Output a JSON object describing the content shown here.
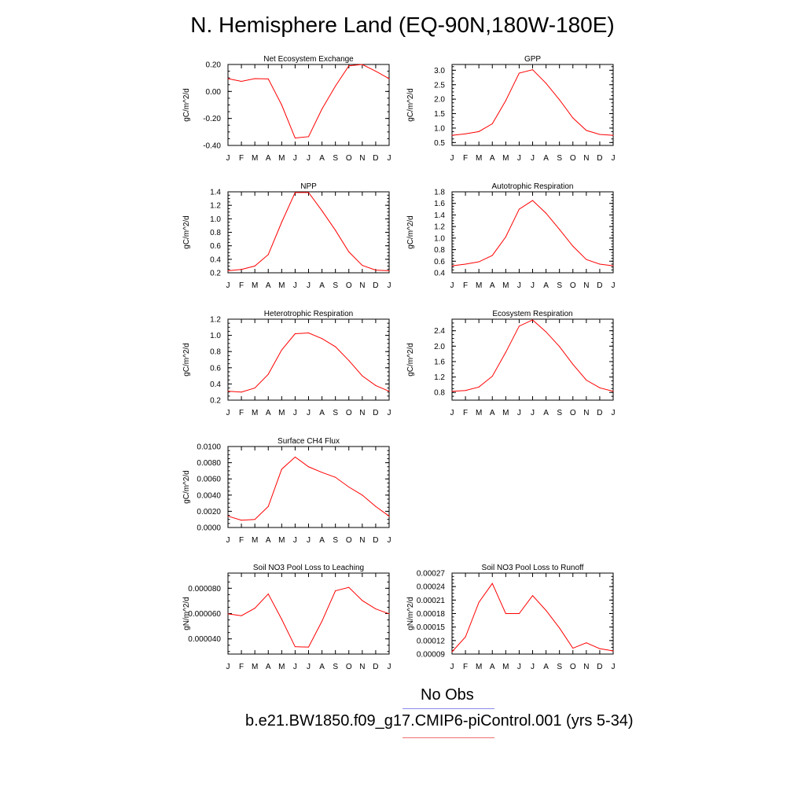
{
  "title": "N. Hemisphere Land (EQ-90N,180W-180E)",
  "legend": {
    "obs_label": "No Obs",
    "obs_color": "#8a8af0",
    "run_label": "b.e21.BW1850.f09_g17.CMIP6-piControl.001 (yrs 5-34)",
    "run_color": "#f07070"
  },
  "chart_data": [
    {
      "id": "nee",
      "type": "line",
      "title": "Net Ecosystem Exchange",
      "ylabel": "gC/m^2/d",
      "x": [
        "J",
        "F",
        "M",
        "A",
        "M",
        "J",
        "J",
        "A",
        "S",
        "O",
        "N",
        "D",
        "J"
      ],
      "ylim": [
        -0.4,
        0.2
      ],
      "yticks": [
        -0.4,
        -0.2,
        0.0,
        0.2
      ],
      "ytick_labels": [
        "-0.40",
        "-0.20",
        "0.00",
        "0.20"
      ],
      "series": [
        {
          "color": "#ff0000",
          "values": [
            0.095,
            0.075,
            0.095,
            0.093,
            -0.1,
            -0.345,
            -0.335,
            -0.13,
            0.04,
            0.19,
            0.2,
            0.15,
            0.095
          ]
        }
      ]
    },
    {
      "id": "gpp",
      "type": "line",
      "title": "GPP",
      "ylabel": "gC/m^2/d",
      "x": [
        "J",
        "F",
        "M",
        "A",
        "M",
        "J",
        "J",
        "A",
        "S",
        "O",
        "N",
        "D",
        "J"
      ],
      "ylim": [
        0.4,
        3.2
      ],
      "yticks": [
        0.5,
        1.0,
        1.5,
        2.0,
        2.5,
        3.0
      ],
      "ytick_labels": [
        "0.5",
        "1.0",
        "1.5",
        "2.0",
        "2.5",
        "3.0"
      ],
      "series": [
        {
          "color": "#ff0000",
          "values": [
            0.75,
            0.8,
            0.88,
            1.15,
            1.95,
            2.9,
            3.02,
            2.55,
            1.98,
            1.35,
            0.92,
            0.78,
            0.75
          ]
        }
      ]
    },
    {
      "id": "npp",
      "type": "line",
      "title": "NPP",
      "ylabel": "gC/m^2/d",
      "x": [
        "J",
        "F",
        "M",
        "A",
        "M",
        "J",
        "J",
        "A",
        "S",
        "O",
        "N",
        "D",
        "J"
      ],
      "ylim": [
        0.2,
        1.4
      ],
      "yticks": [
        0.2,
        0.4,
        0.6,
        0.8,
        1.0,
        1.2,
        1.4
      ],
      "ytick_labels": [
        "0.2",
        "0.4",
        "0.6",
        "0.8",
        "1.0",
        "1.2",
        "1.4"
      ],
      "series": [
        {
          "color": "#ff0000",
          "values": [
            0.23,
            0.25,
            0.3,
            0.47,
            0.95,
            1.39,
            1.39,
            1.12,
            0.83,
            0.51,
            0.31,
            0.24,
            0.23
          ]
        }
      ]
    },
    {
      "id": "ar",
      "type": "line",
      "title": "Autotrophic Respiration",
      "ylabel": "gC/m^2/d",
      "x": [
        "J",
        "F",
        "M",
        "A",
        "M",
        "J",
        "J",
        "A",
        "S",
        "O",
        "N",
        "D",
        "J"
      ],
      "ylim": [
        0.4,
        1.8
      ],
      "yticks": [
        0.4,
        0.6,
        0.8,
        1.0,
        1.2,
        1.4,
        1.6,
        1.8
      ],
      "ytick_labels": [
        "0.4",
        "0.6",
        "0.8",
        "1.0",
        "1.2",
        "1.4",
        "1.6",
        "1.8"
      ],
      "series": [
        {
          "color": "#ff0000",
          "values": [
            0.52,
            0.55,
            0.59,
            0.7,
            1.02,
            1.5,
            1.65,
            1.43,
            1.15,
            0.86,
            0.63,
            0.55,
            0.52
          ]
        }
      ]
    },
    {
      "id": "hr",
      "type": "line",
      "title": "Heterotrophic Respiration",
      "ylabel": "gC/m^2/d",
      "x": [
        "J",
        "F",
        "M",
        "A",
        "M",
        "J",
        "J",
        "A",
        "S",
        "O",
        "N",
        "D",
        "J"
      ],
      "ylim": [
        0.2,
        1.2
      ],
      "yticks": [
        0.2,
        0.4,
        0.6,
        0.8,
        1.0,
        1.2
      ],
      "ytick_labels": [
        "0.2",
        "0.4",
        "0.6",
        "0.8",
        "1.0",
        "1.2"
      ],
      "series": [
        {
          "color": "#ff0000",
          "values": [
            0.31,
            0.3,
            0.35,
            0.52,
            0.82,
            1.02,
            1.03,
            0.96,
            0.86,
            0.69,
            0.5,
            0.38,
            0.31
          ]
        }
      ]
    },
    {
      "id": "er",
      "type": "line",
      "title": "Ecosystem Respiration",
      "ylabel": "gC/m^2/d",
      "x": [
        "J",
        "F",
        "M",
        "A",
        "M",
        "J",
        "J",
        "A",
        "S",
        "O",
        "N",
        "D",
        "J"
      ],
      "ylim": [
        0.6,
        2.7
      ],
      "yticks": [
        0.8,
        1.2,
        1.6,
        2.0,
        2.4
      ],
      "ytick_labels": [
        "0.8",
        "1.2",
        "1.6",
        "2.0",
        "2.4"
      ],
      "series": [
        {
          "color": "#ff0000",
          "values": [
            0.83,
            0.85,
            0.94,
            1.22,
            1.84,
            2.52,
            2.68,
            2.37,
            1.99,
            1.53,
            1.12,
            0.92,
            0.83
          ]
        }
      ]
    },
    {
      "id": "ch4",
      "type": "line",
      "title": "Surface CH4 Flux",
      "ylabel": "gC/m^2/d",
      "x": [
        "J",
        "F",
        "M",
        "A",
        "M",
        "J",
        "J",
        "A",
        "S",
        "O",
        "N",
        "D",
        "J"
      ],
      "ylim": [
        0,
        0.01
      ],
      "yticks": [
        0,
        0.002,
        0.004,
        0.006,
        0.008,
        0.01
      ],
      "ytick_labels": [
        "0.0000",
        "0.0020",
        "0.0040",
        "0.0060",
        "0.0080",
        "0.0100"
      ],
      "series": [
        {
          "color": "#ff0000",
          "values": [
            0.0014,
            0.0009,
            0.001,
            0.0026,
            0.0072,
            0.0087,
            0.0075,
            0.0068,
            0.0062,
            0.005,
            0.004,
            0.0026,
            0.0014
          ]
        }
      ]
    },
    {
      "id": "leach",
      "type": "line",
      "title": "Soil NO3 Pool Loss to Leaching",
      "ylabel": "gN/m^2/d",
      "x": [
        "J",
        "F",
        "M",
        "A",
        "M",
        "J",
        "J",
        "A",
        "S",
        "O",
        "N",
        "D",
        "J"
      ],
      "ylim": [
        2.8e-05,
        9.2e-05
      ],
      "yticks": [
        4e-05,
        6e-05,
        8e-05
      ],
      "ytick_labels": [
        "0.000040",
        "0.000060",
        "0.000080"
      ],
      "series": [
        {
          "color": "#ff0000",
          "values": [
            5.98e-05,
            5.83e-05,
            6.42e-05,
            7.55e-05,
            5.55e-05,
            3.38e-05,
            3.35e-05,
            5.4e-05,
            7.8e-05,
            8.07e-05,
            7.03e-05,
            6.37e-05,
            5.98e-05
          ]
        }
      ]
    },
    {
      "id": "runoff",
      "type": "line",
      "title": "Soil NO3 Pool Loss to Runoff",
      "ylabel": "gN/m^2/d",
      "x": [
        "J",
        "F",
        "M",
        "A",
        "M",
        "J",
        "J",
        "A",
        "S",
        "O",
        "N",
        "D",
        "J"
      ],
      "ylim": [
        9e-05,
        0.00027
      ],
      "yticks": [
        9e-05,
        0.00012,
        0.00015,
        0.00018,
        0.00021,
        0.00024,
        0.00027
      ],
      "ytick_labels": [
        "0.00009",
        "0.00012",
        "0.00015",
        "0.00018",
        "0.00021",
        "0.00024",
        "0.00027"
      ],
      "series": [
        {
          "color": "#ff0000",
          "values": [
            9.5e-05,
            0.000128,
            0.000205,
            0.000247,
            0.00018,
            0.00018,
            0.00022,
            0.000187,
            0.000148,
            0.000103,
            0.000115,
            0.000102,
            9.7e-05
          ]
        }
      ]
    }
  ]
}
